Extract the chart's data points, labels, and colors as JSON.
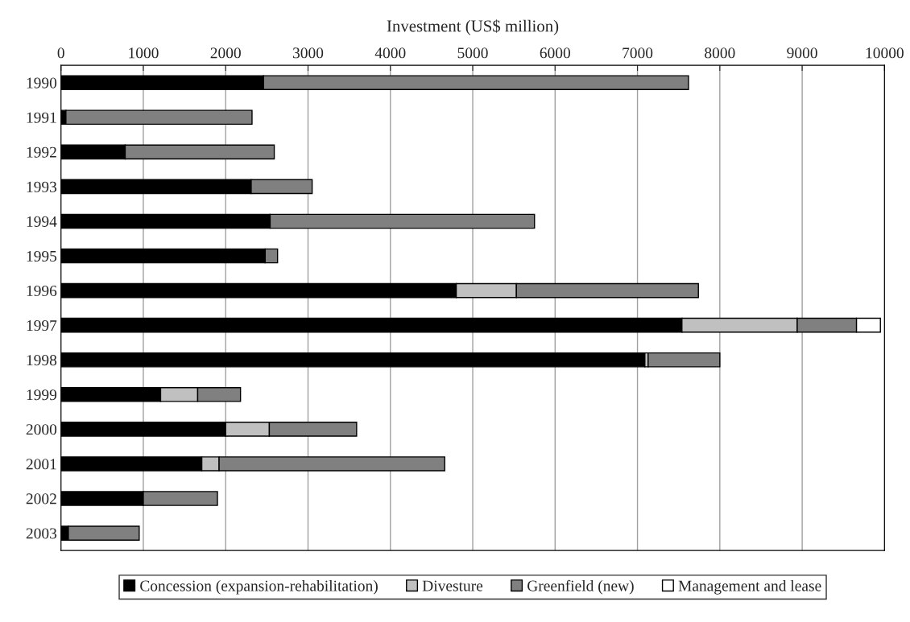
{
  "chart_data": {
    "type": "bar",
    "orientation": "horizontal",
    "stacked": true,
    "xlabel": "Investment (US$ million)",
    "categories": [
      "1990",
      "1991",
      "1992",
      "1993",
      "1994",
      "1995",
      "1996",
      "1997",
      "1998",
      "1999",
      "2000",
      "2001",
      "2002",
      "2003"
    ],
    "series": [
      {
        "name": "Concession (expansion-rehabilitation)",
        "color": "#000000",
        "values": [
          2460,
          60,
          780,
          2310,
          2540,
          2480,
          4800,
          7540,
          7090,
          1210,
          2000,
          1710,
          1000,
          90
        ]
      },
      {
        "name": "Divesture",
        "color": "#c0c0c0",
        "values": [
          null,
          null,
          null,
          null,
          null,
          null,
          730,
          1400,
          40,
          450,
          530,
          210,
          null,
          null
        ]
      },
      {
        "name": "Greenfield (new)",
        "color": "#808080",
        "values": [
          5160,
          2260,
          1810,
          740,
          3210,
          150,
          2210,
          720,
          870,
          520,
          1060,
          2740,
          900,
          860
        ]
      },
      {
        "name": "Management and lease",
        "color": "#ffffff",
        "values": [
          null,
          null,
          null,
          null,
          null,
          null,
          null,
          290,
          null,
          null,
          null,
          null,
          null,
          null
        ]
      }
    ],
    "xlim": [
      0,
      10000
    ],
    "xticks": [
      0,
      1000,
      2000,
      3000,
      4000,
      5000,
      6000,
      7000,
      8000,
      9000,
      10000
    ],
    "grid": "x",
    "legend": "bottom"
  }
}
